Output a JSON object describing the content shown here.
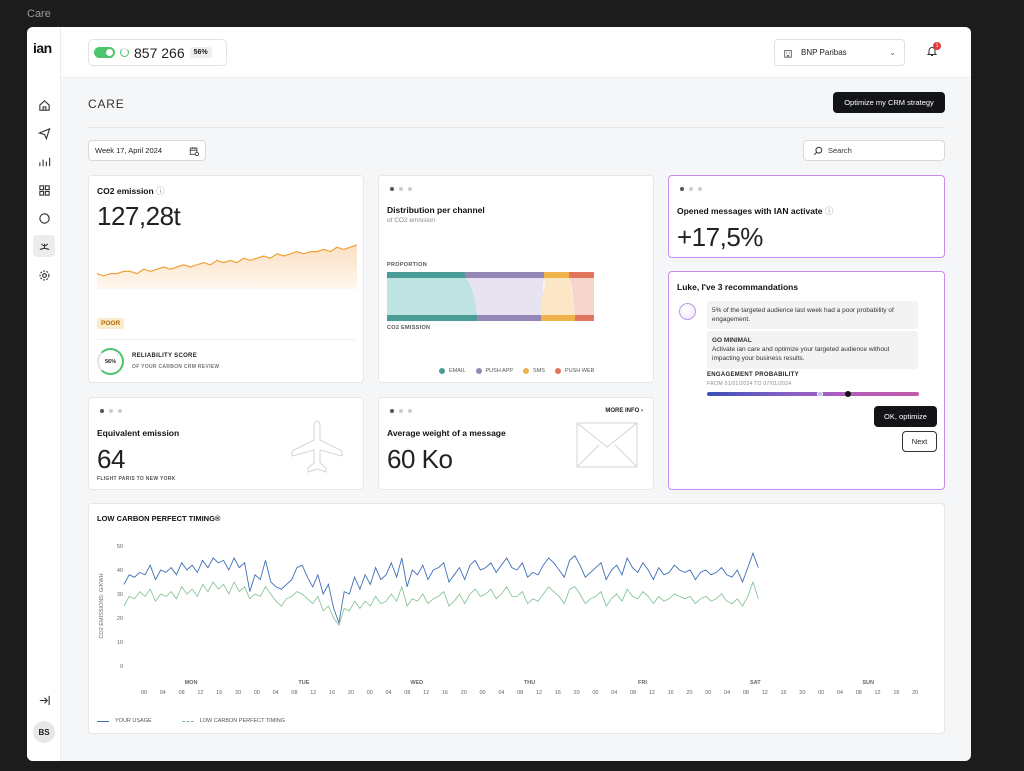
{
  "frame_title": "Care",
  "app": {
    "logo": "ian",
    "avatar": "BS"
  },
  "topbar": {
    "count": "857 266",
    "count_pct": "56%",
    "company": "BNP Paribas",
    "notif_count": "1"
  },
  "page": {
    "title": "CARE",
    "cta": "Optimize my CRM strategy",
    "date": "Week 17, April 2024",
    "search_placeholder": "Search"
  },
  "co2": {
    "title": "CO2 emission",
    "value": "127,28t",
    "badge": "POOR",
    "score_pct": "56%",
    "score_label": "RELIABILITY SCORE",
    "score_sub": "OF YOUR CARBON CRM REVIEW"
  },
  "distribution": {
    "title": "Distribution per channel",
    "subtitle": "of CO2 emission",
    "top_label": "PROPORTION",
    "bottom_label": "CO2 EMISSION",
    "legend": [
      {
        "label": "EMAIL",
        "color": "#4a9d97"
      },
      {
        "label": "PUSH APP",
        "color": "#9487b6"
      },
      {
        "label": "SMS",
        "color": "#f0b24a"
      },
      {
        "label": "PUSH WEB",
        "color": "#e0765e"
      }
    ]
  },
  "opened": {
    "title": "Opened messages with IAN activate",
    "value": "+17,5%"
  },
  "recos": {
    "title": "Luke, I've 3 recommandations",
    "msg1": "5% of the targeted audience last week had a poor probability of engagement.",
    "msg2_title": "GO MINIMAL",
    "msg2": "Activate ian care and optimize your targeted audience without impacting your business results.",
    "prob_title": "ENGAGEMENT PROBABILITY",
    "prob_range": "FROM 01/01/2024 TO 07/01/2024",
    "ok": "OK, optimize",
    "next": "Next"
  },
  "equivalent": {
    "title": "Equivalent emission",
    "value": "64",
    "sub": "FLIGHT PARIS TO NEW YORK"
  },
  "avg_weight": {
    "title": "Average weight of a message",
    "value": "60 Ko",
    "more": "MORE INFO"
  },
  "timing": {
    "title": "LOW CARBON PERFECT TIMING®",
    "ylabel": "CO2 EMISSIONS: G/KWH",
    "legend_usage": "YOUR USAGE",
    "legend_perfect": "LOW CARBON PERFECT TIMING"
  },
  "chart_data": {
    "type": "line",
    "title": "LOW CARBON PERFECT TIMING®",
    "ylabel": "CO2 EMISSIONS: G/KWH",
    "ylim": [
      0,
      50
    ],
    "yticks": [
      0,
      10,
      20,
      30,
      40,
      50
    ],
    "days": [
      "MON",
      "TUE",
      "WED",
      "THU",
      "FRI",
      "SAT",
      "SUN"
    ],
    "hour_ticks": [
      "00",
      "04",
      "08",
      "12",
      "16",
      "20"
    ],
    "series": [
      {
        "name": "YOUR USAGE",
        "color": "#3f6fb5",
        "values": [
          34,
          38,
          37,
          39,
          38,
          42,
          36,
          40,
          39,
          41,
          38,
          43,
          40,
          42,
          39,
          44,
          41,
          45,
          43,
          44,
          40,
          45,
          41,
          43,
          31,
          38,
          36,
          44,
          35,
          33,
          32,
          34,
          36,
          41,
          42,
          37,
          33,
          38,
          30,
          34,
          24,
          18,
          31,
          30,
          37,
          32,
          38,
          34,
          41,
          36,
          38,
          43,
          37,
          45,
          33,
          40,
          38,
          42,
          36,
          40,
          41,
          43,
          35,
          38,
          41,
          36,
          42,
          44,
          40,
          41,
          43,
          39,
          42,
          45,
          41,
          40,
          43,
          37,
          39,
          38,
          42,
          45,
          43,
          40,
          37,
          44,
          46,
          42,
          37,
          39,
          41,
          43,
          36,
          40,
          42,
          38,
          45,
          41,
          39,
          43,
          40,
          36,
          41,
          38,
          39,
          42,
          40,
          39,
          40,
          36,
          39,
          40,
          38,
          39,
          41,
          38,
          37,
          40,
          35,
          41,
          47,
          41
        ]
      },
      {
        "name": "LOW CARBON PERFECT TIMING",
        "color": "#7dc08f",
        "values": [
          25,
          29,
          28,
          31,
          29,
          32,
          27,
          30,
          29,
          31,
          28,
          33,
          30,
          32,
          29,
          34,
          31,
          35,
          32,
          34,
          30,
          35,
          31,
          33,
          28,
          30,
          29,
          33,
          30,
          27,
          25,
          28,
          29,
          31,
          30,
          28,
          26,
          29,
          23,
          25,
          20,
          17,
          24,
          23,
          27,
          24,
          27,
          25,
          29,
          26,
          27,
          30,
          27,
          33,
          25,
          28,
          27,
          30,
          26,
          28,
          29,
          31,
          25,
          27,
          30,
          26,
          30,
          32,
          29,
          30,
          32,
          28,
          30,
          33,
          29,
          29,
          31,
          26,
          28,
          27,
          30,
          33,
          31,
          29,
          26,
          32,
          33,
          30,
          26,
          28,
          29,
          31,
          25,
          28,
          30,
          27,
          32,
          29,
          28,
          31,
          29,
          26,
          29,
          27,
          28,
          30,
          29,
          28,
          29,
          26,
          28,
          29,
          27,
          28,
          30,
          27,
          26,
          28,
          25,
          29,
          35,
          28
        ]
      }
    ]
  },
  "co2_sparkline": {
    "values": [
      27,
      26,
      27,
      27,
      28,
      28,
      27,
      29,
      28,
      29,
      30,
      29,
      30,
      31,
      30,
      31,
      32,
      31,
      33,
      32,
      33,
      32,
      34,
      33,
      34,
      35,
      34,
      36,
      35,
      36,
      37,
      36,
      37,
      37,
      38,
      37,
      39,
      38,
      39,
      40
    ]
  }
}
